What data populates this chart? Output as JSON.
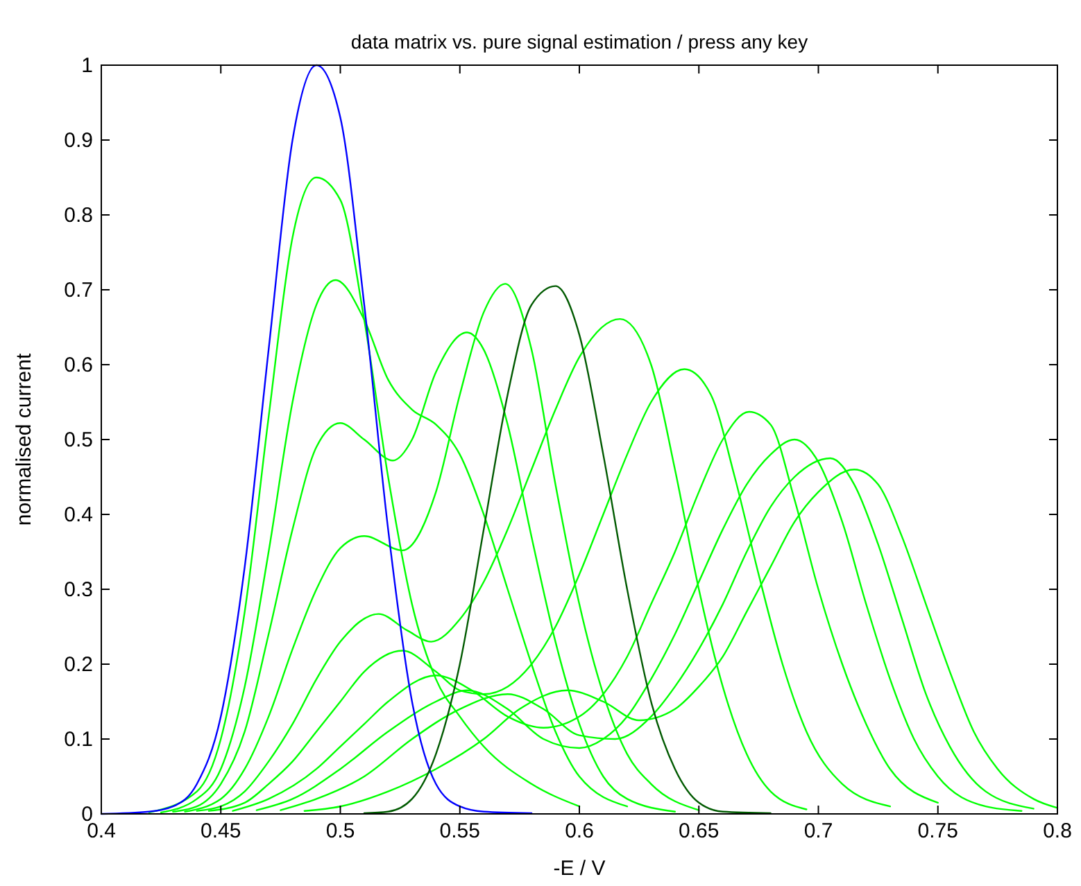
{
  "chart_data": {
    "type": "line",
    "title": "data matrix vs. pure signal estimation / press any key",
    "xlabel": "-E / V",
    "ylabel": "normalised current",
    "xlim": [
      0.4,
      0.8
    ],
    "ylim": [
      0,
      1
    ],
    "xticks": [
      0.4,
      0.45,
      0.5,
      0.55,
      0.6,
      0.65,
      0.7,
      0.75,
      0.8
    ],
    "yticks": [
      0,
      0.1,
      0.2,
      0.3,
      0.4,
      0.5,
      0.6,
      0.7,
      0.8,
      0.9,
      1
    ],
    "grid": false,
    "marker": "none",
    "line_style": "solid",
    "series": [
      {
        "color": "#00ff00",
        "x": [
          0.42,
          0.44,
          0.45,
          0.46,
          0.47,
          0.48,
          0.49,
          0.5,
          0.51,
          0.52,
          0.53,
          0.54,
          0.55,
          0.56,
          0.58,
          0.6
        ],
        "values": [
          0.002,
          0.03,
          0.1,
          0.27,
          0.53,
          0.77,
          0.85,
          0.82,
          0.66,
          0.45,
          0.28,
          0.18,
          0.13,
          0.09,
          0.04,
          0.01
        ]
      },
      {
        "color": "#00ff00",
        "x": [
          0.425,
          0.44,
          0.45,
          0.46,
          0.47,
          0.48,
          0.49,
          0.498,
          0.51,
          0.52,
          0.53,
          0.54,
          0.55,
          0.56,
          0.57,
          0.58,
          0.59,
          0.6,
          0.62
        ],
        "values": [
          0.002,
          0.02,
          0.06,
          0.17,
          0.35,
          0.55,
          0.68,
          0.713,
          0.66,
          0.58,
          0.54,
          0.52,
          0.48,
          0.4,
          0.3,
          0.2,
          0.11,
          0.05,
          0.01
        ]
      },
      {
        "color": "#00ff00",
        "x": [
          0.43,
          0.44,
          0.45,
          0.46,
          0.47,
          0.48,
          0.49,
          0.5,
          0.51,
          0.522,
          0.53,
          0.54,
          0.553,
          0.56,
          0.57,
          0.58,
          0.59,
          0.6,
          0.61,
          0.62,
          0.64
        ],
        "values": [
          0.003,
          0.01,
          0.04,
          0.11,
          0.24,
          0.38,
          0.49,
          0.522,
          0.5,
          0.472,
          0.5,
          0.59,
          0.643,
          0.62,
          0.52,
          0.37,
          0.23,
          0.12,
          0.05,
          0.02,
          0.003
        ]
      },
      {
        "color": "#00ff00",
        "x": [
          0.435,
          0.45,
          0.46,
          0.47,
          0.48,
          0.49,
          0.5,
          0.51,
          0.526,
          0.54,
          0.55,
          0.56,
          0.569,
          0.58,
          0.59,
          0.6,
          0.61,
          0.62,
          0.63,
          0.65
        ],
        "values": [
          0.003,
          0.02,
          0.06,
          0.13,
          0.22,
          0.3,
          0.355,
          0.371,
          0.352,
          0.43,
          0.56,
          0.67,
          0.708,
          0.62,
          0.44,
          0.28,
          0.16,
          0.08,
          0.04,
          0.005
        ]
      },
      {
        "color": "#00ff00",
        "x": [
          0.44,
          0.45,
          0.46,
          0.47,
          0.48,
          0.49,
          0.5,
          0.516,
          0.528,
          0.538,
          0.55,
          0.56,
          0.57,
          0.58,
          0.59,
          0.6,
          0.617,
          0.63,
          0.64,
          0.65,
          0.66,
          0.67,
          0.68,
          0.695
        ],
        "values": [
          0.004,
          0.01,
          0.03,
          0.07,
          0.12,
          0.18,
          0.23,
          0.267,
          0.245,
          0.23,
          0.26,
          0.31,
          0.38,
          0.46,
          0.54,
          0.61,
          0.661,
          0.6,
          0.46,
          0.3,
          0.17,
          0.08,
          0.03,
          0.006
        ]
      },
      {
        "color": "#00ff00",
        "x": [
          0.445,
          0.46,
          0.47,
          0.48,
          0.49,
          0.5,
          0.51,
          0.526,
          0.54,
          0.55,
          0.56,
          0.57,
          0.58,
          0.59,
          0.6,
          0.61,
          0.62,
          0.63,
          0.644,
          0.655,
          0.665,
          0.675,
          0.685,
          0.695,
          0.71,
          0.73
        ],
        "values": [
          0.004,
          0.015,
          0.04,
          0.07,
          0.11,
          0.15,
          0.19,
          0.218,
          0.19,
          0.165,
          0.16,
          0.17,
          0.2,
          0.25,
          0.32,
          0.4,
          0.48,
          0.55,
          0.594,
          0.56,
          0.45,
          0.32,
          0.2,
          0.11,
          0.04,
          0.01
        ]
      },
      {
        "color": "#00ff00",
        "x": [
          0.455,
          0.47,
          0.49,
          0.5,
          0.51,
          0.52,
          0.54,
          0.555,
          0.57,
          0.585,
          0.6,
          0.61,
          0.62,
          0.63,
          0.64,
          0.65,
          0.66,
          0.671,
          0.68,
          0.69,
          0.7,
          0.71,
          0.72,
          0.73,
          0.75
        ],
        "values": [
          0.004,
          0.02,
          0.06,
          0.09,
          0.12,
          0.15,
          0.185,
          0.165,
          0.13,
          0.115,
          0.13,
          0.16,
          0.21,
          0.28,
          0.35,
          0.43,
          0.5,
          0.537,
          0.52,
          0.42,
          0.3,
          0.2,
          0.12,
          0.06,
          0.015
        ]
      },
      {
        "color": "#00ff00",
        "x": [
          0.465,
          0.48,
          0.5,
          0.52,
          0.54,
          0.553,
          0.57,
          0.585,
          0.6,
          0.61,
          0.62,
          0.63,
          0.64,
          0.65,
          0.66,
          0.67,
          0.68,
          0.69,
          0.7,
          0.71,
          0.72,
          0.73,
          0.74,
          0.75,
          0.77,
          0.785
        ],
        "values": [
          0.005,
          0.02,
          0.06,
          0.11,
          0.15,
          0.165,
          0.14,
          0.1,
          0.088,
          0.1,
          0.13,
          0.18,
          0.24,
          0.31,
          0.38,
          0.44,
          0.48,
          0.5,
          0.47,
          0.39,
          0.28,
          0.18,
          0.1,
          0.05,
          0.01,
          0.004
        ]
      },
      {
        "color": "#00ff00",
        "x": [
          0.475,
          0.49,
          0.51,
          0.53,
          0.55,
          0.57,
          0.585,
          0.6,
          0.615,
          0.63,
          0.64,
          0.65,
          0.66,
          0.67,
          0.68,
          0.69,
          0.705,
          0.715,
          0.725,
          0.735,
          0.745,
          0.755,
          0.77,
          0.79
        ],
        "values": [
          0.005,
          0.02,
          0.05,
          0.1,
          0.14,
          0.16,
          0.14,
          0.105,
          0.1,
          0.13,
          0.17,
          0.22,
          0.28,
          0.35,
          0.41,
          0.45,
          0.475,
          0.44,
          0.36,
          0.26,
          0.16,
          0.09,
          0.03,
          0.007
        ]
      },
      {
        "color": "#00ff00",
        "x": [
          0.485,
          0.5,
          0.52,
          0.54,
          0.56,
          0.575,
          0.595,
          0.61,
          0.625,
          0.64,
          0.65,
          0.66,
          0.67,
          0.68,
          0.69,
          0.7,
          0.715,
          0.725,
          0.735,
          0.745,
          0.755,
          0.765,
          0.775,
          0.79,
          0.8
        ],
        "values": [
          0.004,
          0.01,
          0.03,
          0.06,
          0.1,
          0.14,
          0.165,
          0.15,
          0.125,
          0.14,
          0.17,
          0.21,
          0.27,
          0.33,
          0.39,
          0.43,
          0.46,
          0.44,
          0.37,
          0.28,
          0.19,
          0.11,
          0.06,
          0.02,
          0.008
        ]
      },
      {
        "color": "#0000ff",
        "x": [
          0.4,
          0.42,
          0.43,
          0.44,
          0.45,
          0.46,
          0.47,
          0.48,
          0.49,
          0.5,
          0.51,
          0.52,
          0.53,
          0.54,
          0.55,
          0.56,
          0.58
        ],
        "values": [
          0,
          0.003,
          0.01,
          0.04,
          0.13,
          0.33,
          0.62,
          0.9,
          1,
          0.93,
          0.68,
          0.38,
          0.15,
          0.04,
          0.01,
          0.003,
          0.001
        ]
      },
      {
        "color": "#005a00",
        "x": [
          0.51,
          0.52,
          0.53,
          0.54,
          0.55,
          0.56,
          0.57,
          0.58,
          0.59,
          0.6,
          0.61,
          0.62,
          0.63,
          0.64,
          0.65,
          0.66,
          0.68
        ],
        "values": [
          0.001,
          0.003,
          0.02,
          0.08,
          0.2,
          0.38,
          0.56,
          0.68,
          0.705,
          0.64,
          0.48,
          0.3,
          0.15,
          0.06,
          0.015,
          0.003,
          0.001
        ]
      }
    ]
  }
}
